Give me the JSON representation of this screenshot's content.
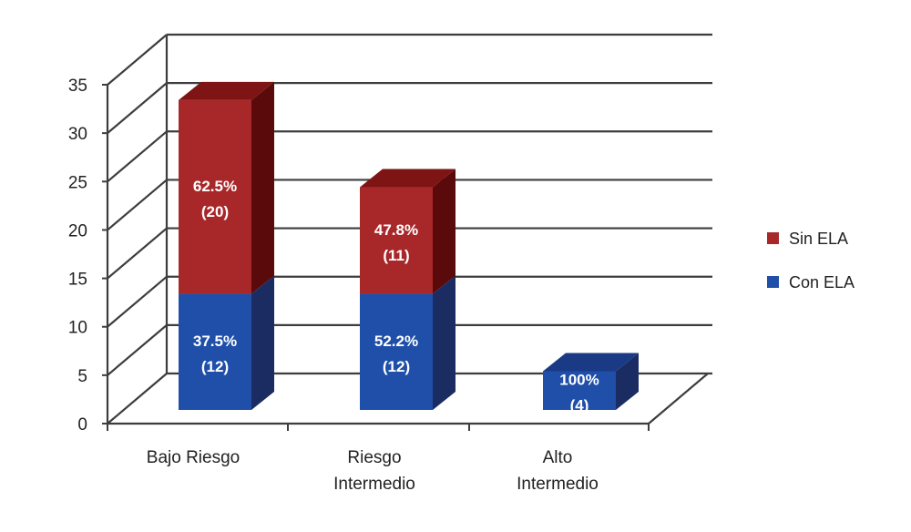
{
  "colors": {
    "sin_ela": "#a8282a",
    "sin_ela_top": "#7e1414",
    "sin_ela_side": "#5a0a0a",
    "con_ela": "#1f4fa8",
    "con_ela_top": "#1a3a86",
    "con_ela_side": "#1b2c63",
    "grid": "#3d3d3d"
  },
  "chart_data": {
    "type": "bar",
    "stacked": true,
    "three_d": true,
    "categories": [
      "Bajo Riesgo",
      "Riesgo\nIntermedio",
      "Alto\nIntermedio"
    ],
    "ylim": [
      0,
      35
    ],
    "yticks": [
      "0",
      "5",
      "10",
      "15",
      "20",
      "25",
      "30",
      "35"
    ],
    "grid": true,
    "legend_position": "right",
    "series": [
      {
        "name": "Con ELA",
        "color_key": "con_ela",
        "values": [
          12,
          12,
          4
        ],
        "labels": [
          [
            "37.5%",
            "(12)"
          ],
          [
            "52.2%",
            "(12)"
          ],
          [
            "100%",
            "(4)"
          ]
        ]
      },
      {
        "name": "Sin ELA",
        "color_key": "sin_ela",
        "values": [
          20,
          11,
          0
        ],
        "labels": [
          [
            "62.5%",
            "(20)"
          ],
          [
            "47.8%",
            "(11)"
          ],
          null
        ]
      }
    ],
    "legend": [
      "Sin ELA",
      "Con ELA"
    ]
  }
}
